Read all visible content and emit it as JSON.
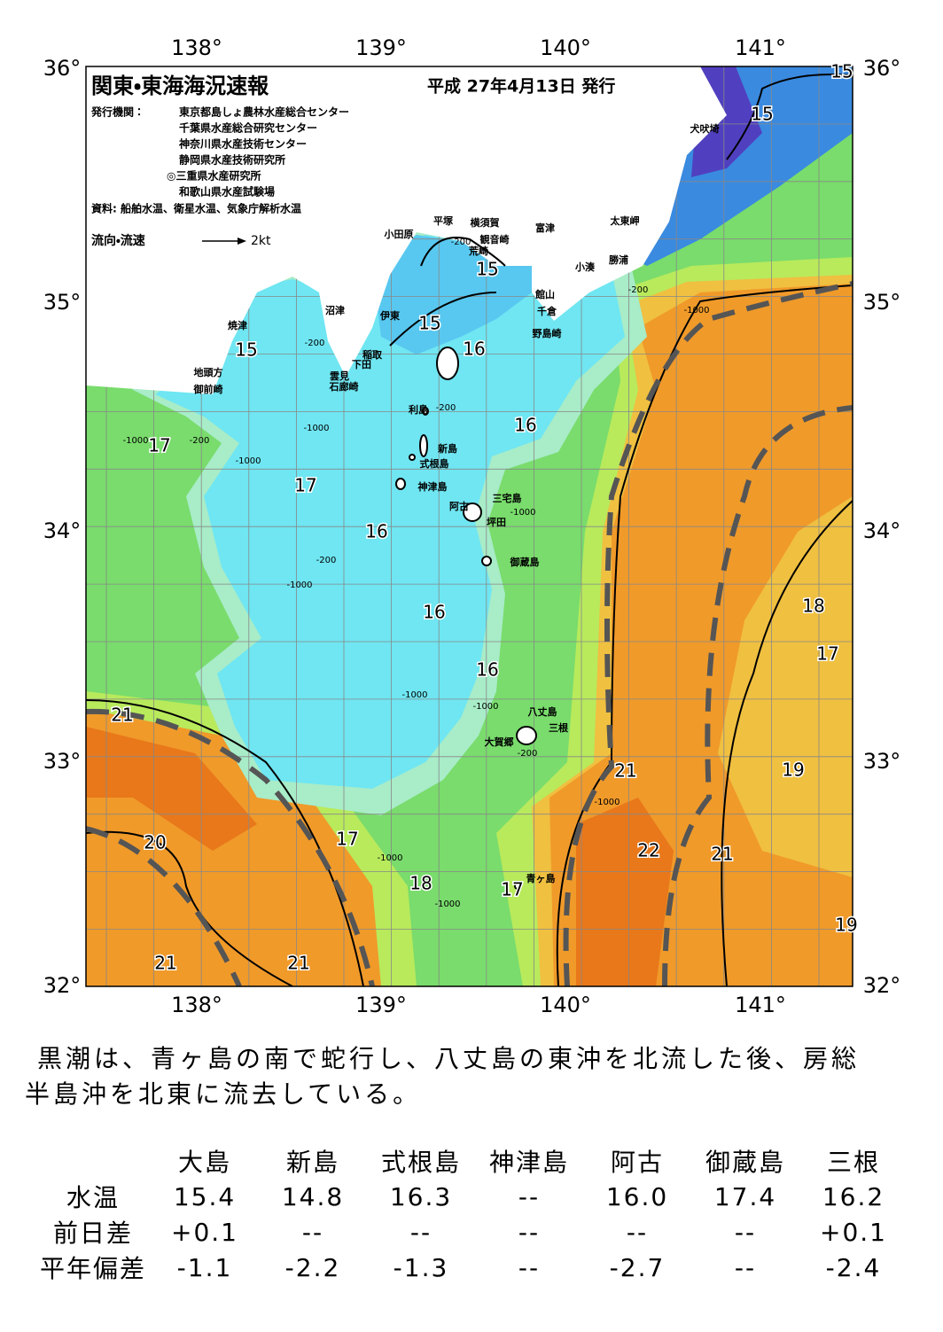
{
  "map": {
    "title": "関東・東海海況速報",
    "issued": "平成 27年4月13日 発行",
    "issuer_label": "発行機関：",
    "issuers": [
      "東京都島しょ農林水産総合センター",
      "千葉県水産総合研究センター",
      "神奈川県水産技術センター",
      "静岡県水産技術研究所",
      "◎三重県水産研究所",
      "和歌山県水産試験場"
    ],
    "source": "資料: 船舶水温、衛星水温、気象庁解析水温",
    "legend": {
      "label": "流向・流速",
      "speed": "2kt"
    },
    "lon_labels": [
      "138°",
      "139°",
      "140°",
      "141°"
    ],
    "lat_labels": [
      "36°",
      "35°",
      "34°",
      "33°",
      "32°"
    ],
    "place_names": [
      "小田原",
      "平塚",
      "横須賀",
      "観音崎",
      "荒崎",
      "富津",
      "館山",
      "千倉",
      "野島崎",
      "小湊",
      "勝浦",
      "太東岬",
      "犬吠埼",
      "沼津",
      "伊東",
      "焼津",
      "稲取",
      "下田",
      "雲見",
      "石廊崎",
      "地頭方",
      "御前崎",
      "利島",
      "新島",
      "式根島",
      "神津島",
      "三宅島",
      "阿古",
      "坪田",
      "御蔵島",
      "八丈島",
      "三根",
      "大賀郷",
      "青ヶ島"
    ],
    "temperature_labels": [
      "15",
      "15",
      "15",
      "15",
      "15",
      "16",
      "16",
      "16",
      "16",
      "16",
      "17",
      "17",
      "17",
      "18",
      "17",
      "18",
      "17",
      "19",
      "21",
      "20",
      "21",
      "21",
      "21",
      "22",
      "21",
      "19"
    ],
    "depth_labels": [
      "-200",
      "-200",
      "-1000",
      "-200",
      "-200",
      "-1000",
      "-1000",
      "-1000",
      "-200",
      "-1000",
      "-200",
      "-1000",
      "-1000",
      "-1000",
      "-200",
      "-1000",
      "-1000",
      "-1000"
    ]
  },
  "summary": [
    "黒潮は、青ヶ島の南で蛇行し、八丈島の東沖を北流した後、房総",
    "半島沖を北東に流去している。"
  ],
  "table": {
    "columns": [
      "大島",
      "新島",
      "式根島",
      "神津島",
      "阿古",
      "御蔵島",
      "三根"
    ],
    "rows": [
      {
        "label": "水温",
        "values": [
          "15.4",
          "14.8",
          "16.3",
          "--",
          "16.0",
          "17.4",
          "16.2"
        ]
      },
      {
        "label": "前日差",
        "values": [
          "+0.1",
          "--",
          "--",
          "--",
          "--",
          "--",
          "+0.1"
        ]
      },
      {
        "label": "平年偏差",
        "values": [
          "-1.1",
          "-2.2",
          "-1.3",
          "--",
          "-2.7",
          "--",
          "-2.4"
        ]
      }
    ]
  }
}
